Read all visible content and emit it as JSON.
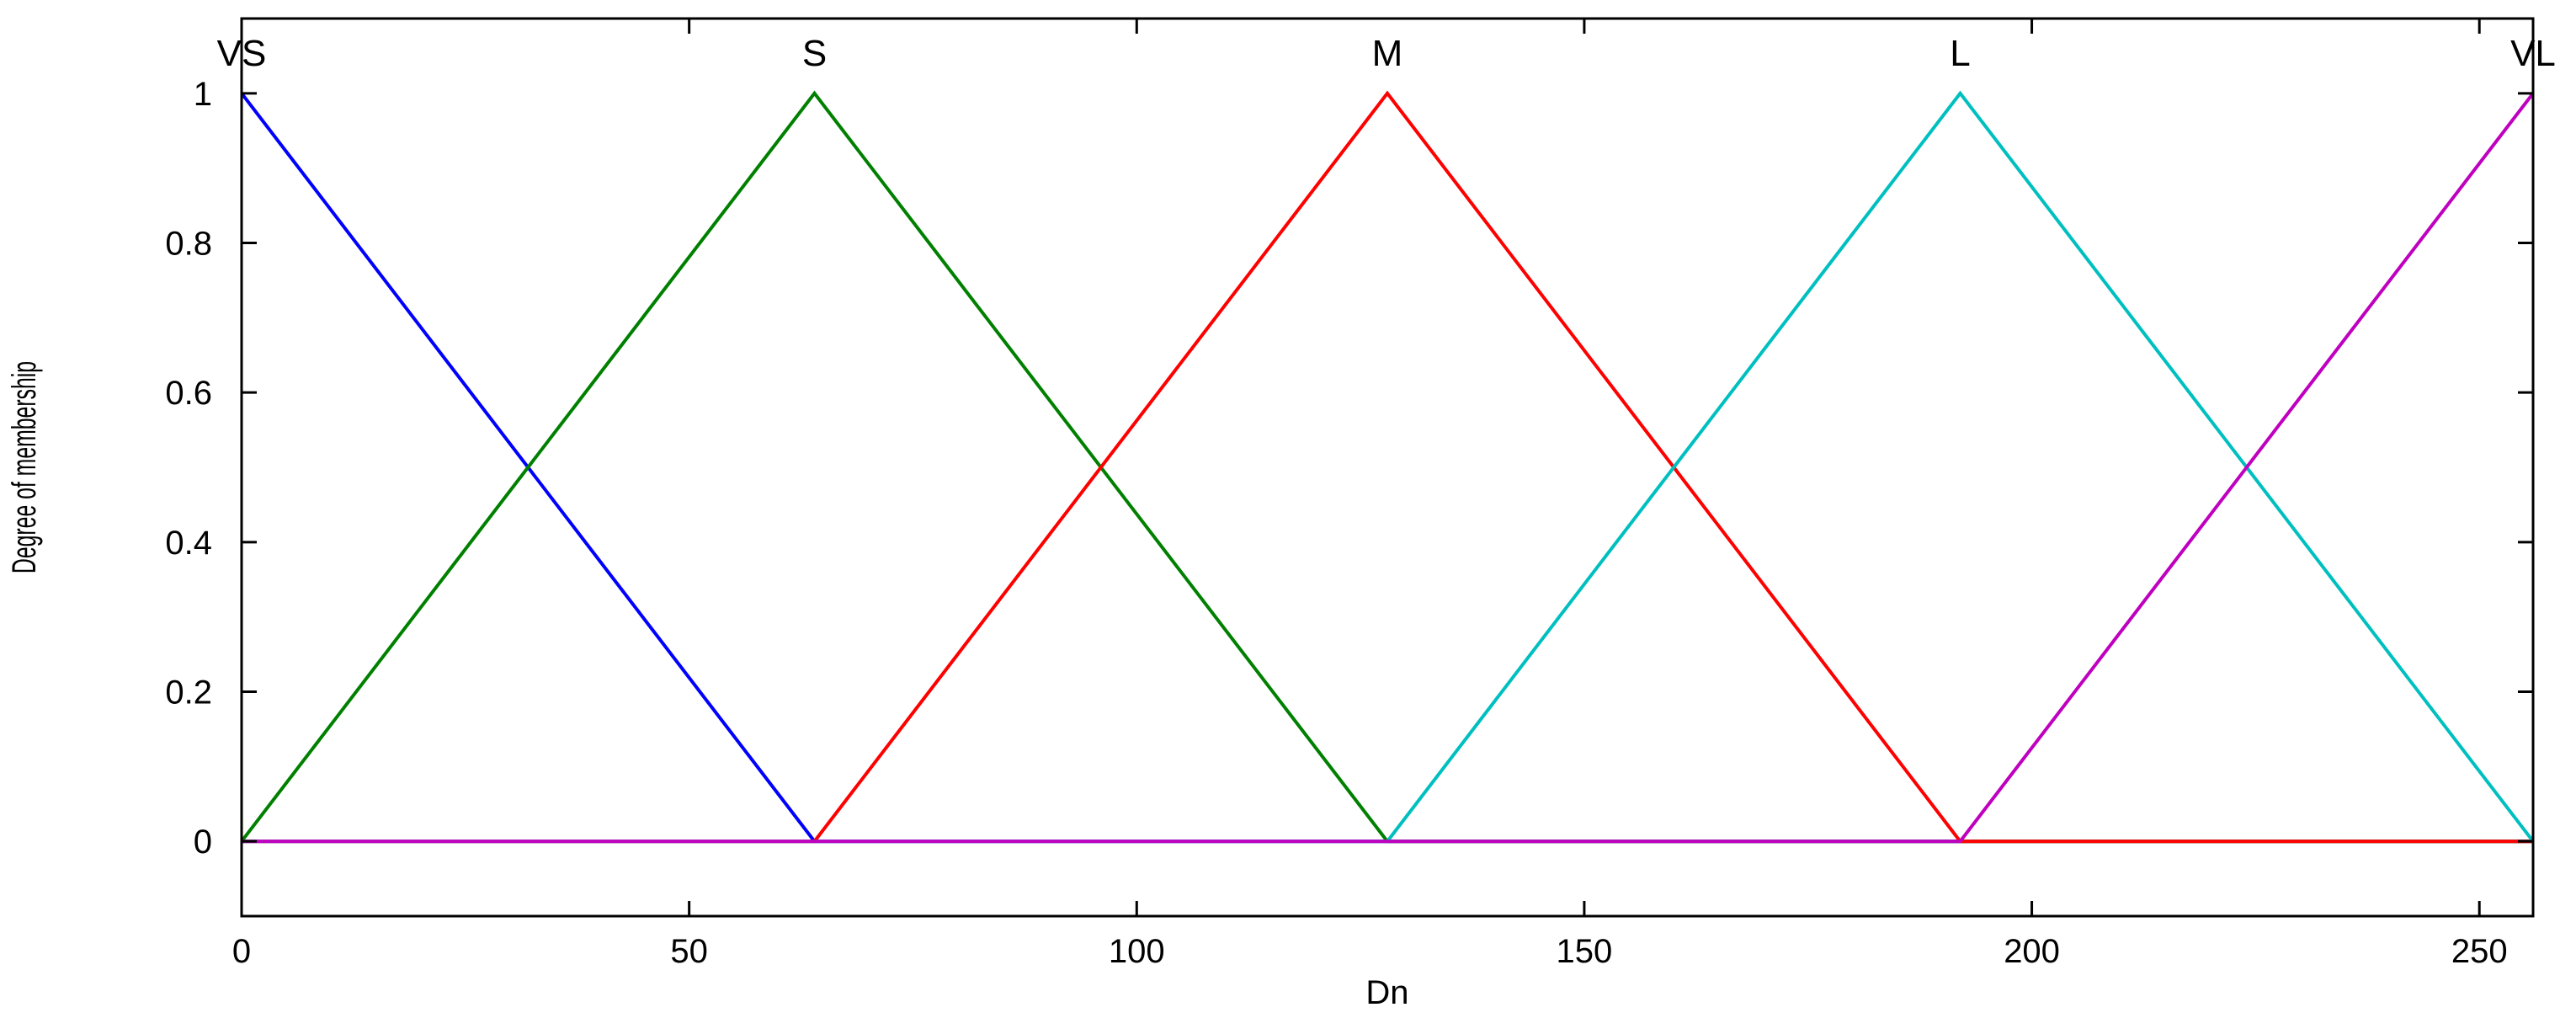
{
  "chart_data": {
    "type": "line",
    "title": "",
    "xlabel": "Dn",
    "ylabel": "Degree of membership",
    "xlim": [
      0,
      256
    ],
    "ylim": [
      -0.1,
      1.1
    ],
    "xticks": [
      0,
      50,
      100,
      150,
      200,
      250
    ],
    "xtick_labels": [
      "0",
      "50",
      "100",
      "150",
      "200",
      "250"
    ],
    "yticks": [
      0,
      0.2,
      0.4,
      0.6,
      0.8,
      1
    ],
    "ytick_labels": [
      "0",
      "0.2",
      "0.4",
      "0.6",
      "0.8",
      "1"
    ],
    "grid": false,
    "series": [
      {
        "name": "VS",
        "color": "#0000ff",
        "x": [
          0,
          64,
          256
        ],
        "y": [
          1,
          0,
          0
        ],
        "peak": 0
      },
      {
        "name": "S",
        "color": "#008000",
        "x": [
          0,
          64,
          128,
          256
        ],
        "y": [
          0,
          1,
          0,
          0
        ],
        "peak": 64
      },
      {
        "name": "M",
        "color": "#ff0000",
        "x": [
          0,
          64,
          128,
          192,
          256
        ],
        "y": [
          0,
          0,
          1,
          0,
          0
        ],
        "peak": 128
      },
      {
        "name": "L",
        "color": "#00bfbf",
        "x": [
          0,
          128,
          192,
          256
        ],
        "y": [
          0,
          0,
          1,
          0
        ],
        "peak": 192
      },
      {
        "name": "VL",
        "color": "#bf00bf",
        "x": [
          0,
          192,
          256
        ],
        "y": [
          0,
          0,
          1
        ],
        "peak": 256
      }
    ]
  }
}
